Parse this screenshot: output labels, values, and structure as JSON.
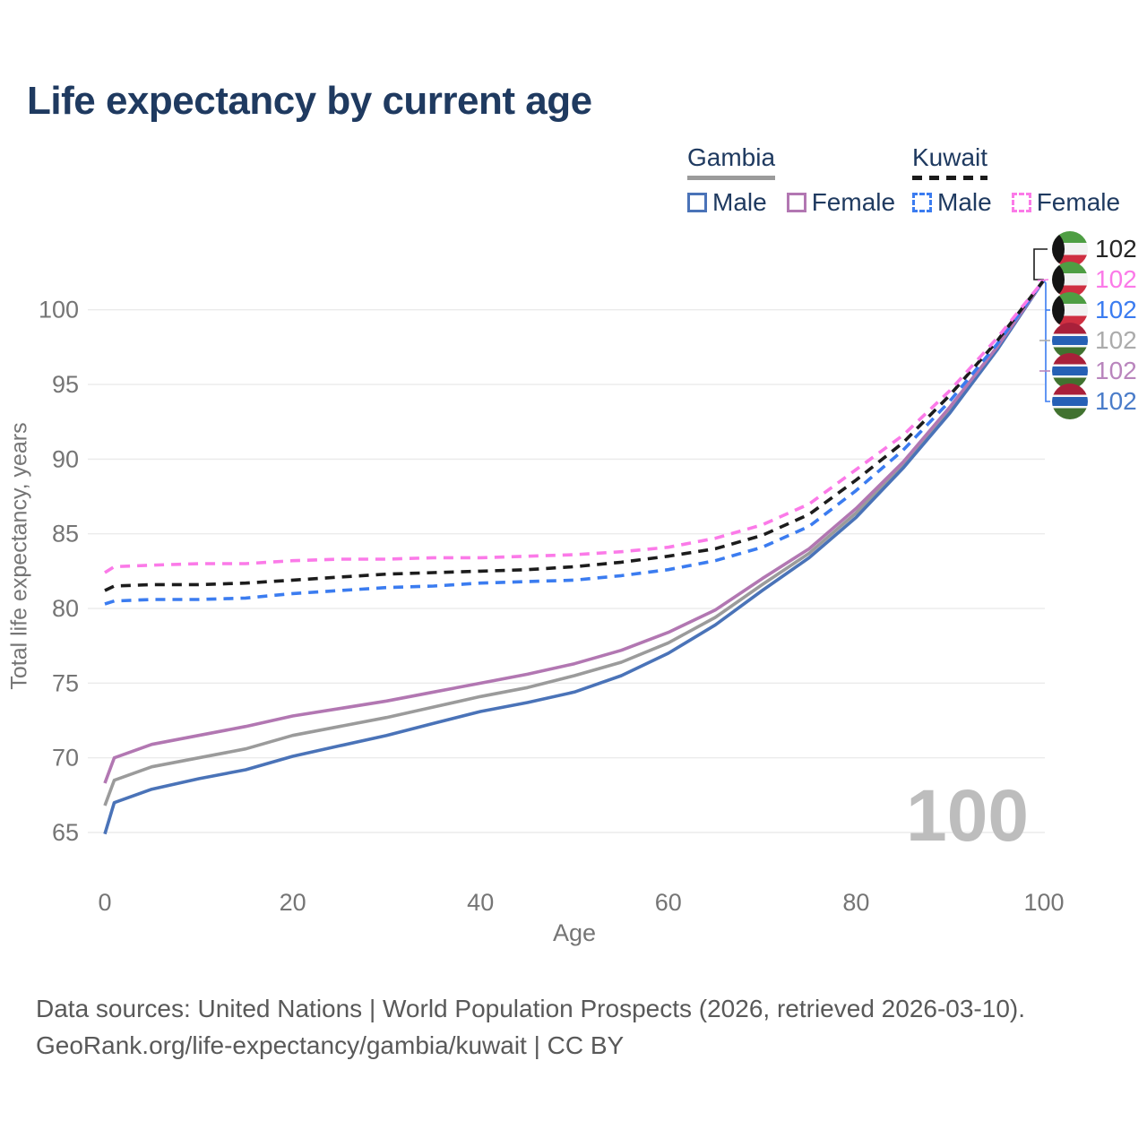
{
  "title": "Life expectancy by current age",
  "legend": {
    "groups": [
      {
        "label": "Gambia",
        "line_style": "solid",
        "underline_color": "#9b9b9b",
        "items": [
          {
            "label": "Male",
            "color": "#4a73b8",
            "dashed": false
          },
          {
            "label": "Female",
            "color": "#b277b2",
            "dashed": false
          }
        ]
      },
      {
        "label": "Kuwait",
        "line_style": "dashed",
        "underline_color": "#1b1b1b",
        "items": [
          {
            "label": "Male",
            "color": "#3b7cf0",
            "dashed": true
          },
          {
            "label": "Female",
            "color": "#fb7ae8",
            "dashed": true
          }
        ]
      }
    ]
  },
  "end_labels": [
    {
      "value": "102",
      "country": "Kuwait",
      "series": "Kuwait",
      "color": "#262626",
      "flag": "kuwait"
    },
    {
      "value": "102",
      "country": "Kuwait",
      "series": "Kuwait Female",
      "color": "#fb7ae8",
      "flag": "kuwait"
    },
    {
      "value": "102",
      "country": "Kuwait",
      "series": "Kuwait Male",
      "color": "#3b7cf0",
      "flag": "kuwait"
    },
    {
      "value": "102",
      "country": "Gambia",
      "series": "Gambia",
      "color": "#ababab",
      "flag": "gambia"
    },
    {
      "value": "102",
      "country": "Gambia",
      "series": "Gambia Female",
      "color": "#b985bd",
      "flag": "gambia"
    },
    {
      "value": "102",
      "country": "Gambia",
      "series": "Gambia Male",
      "color": "#4a7cc9",
      "flag": "gambia"
    }
  ],
  "watermark": "100",
  "chart_data": {
    "type": "line",
    "title": "Life expectancy by current age",
    "xlabel": "Age",
    "ylabel": "Total life expectancy, years",
    "x": [
      0,
      1,
      5,
      10,
      15,
      20,
      25,
      30,
      35,
      40,
      45,
      50,
      55,
      60,
      65,
      70,
      75,
      80,
      85,
      90,
      95,
      100
    ],
    "xticks": [
      0,
      20,
      40,
      60,
      80,
      100
    ],
    "yticks": [
      65,
      70,
      75,
      80,
      85,
      90,
      95,
      100
    ],
    "xlim": [
      0,
      100
    ],
    "ylim": [
      63,
      103.5
    ],
    "grid": "horizontal",
    "legend_position": "top-right",
    "series": [
      {
        "name": "Gambia",
        "color": "#9b9b9b",
        "dashed": false,
        "values": [
          66.8,
          68.5,
          69.4,
          70.0,
          70.6,
          71.5,
          72.1,
          72.7,
          73.4,
          74.1,
          74.7,
          75.5,
          76.4,
          77.7,
          79.4,
          81.6,
          83.7,
          86.4,
          89.6,
          93.3,
          97.4,
          102
        ]
      },
      {
        "name": "Gambia Male",
        "color": "#4a73b8",
        "dashed": false,
        "values": [
          64.9,
          67.0,
          67.9,
          68.6,
          69.2,
          70.1,
          70.8,
          71.5,
          72.3,
          73.1,
          73.7,
          74.4,
          75.5,
          77.0,
          78.9,
          81.2,
          83.4,
          86.1,
          89.4,
          93.1,
          97.3,
          102
        ]
      },
      {
        "name": "Gambia Female",
        "color": "#b277b2",
        "dashed": false,
        "values": [
          68.3,
          70.0,
          70.9,
          71.5,
          72.1,
          72.8,
          73.3,
          73.8,
          74.4,
          75.0,
          75.6,
          76.3,
          77.2,
          78.4,
          79.9,
          82.0,
          84.0,
          86.7,
          89.8,
          93.5,
          97.5,
          102
        ]
      },
      {
        "name": "Kuwait Male",
        "color": "#3b7cf0",
        "dashed": true,
        "values": [
          80.3,
          80.5,
          80.6,
          80.6,
          80.7,
          81.0,
          81.2,
          81.4,
          81.5,
          81.7,
          81.8,
          81.9,
          82.2,
          82.6,
          83.2,
          84.1,
          85.5,
          87.9,
          90.6,
          93.9,
          97.7,
          102
        ]
      },
      {
        "name": "Kuwait",
        "color": "#1c1c1c",
        "dashed": true,
        "values": [
          81.2,
          81.5,
          81.6,
          81.6,
          81.7,
          81.9,
          82.1,
          82.3,
          82.4,
          82.5,
          82.6,
          82.8,
          83.1,
          83.5,
          84.0,
          84.9,
          86.3,
          88.6,
          91.1,
          94.3,
          97.9,
          102
        ]
      },
      {
        "name": "Kuwait Female",
        "color": "#fb7ae8",
        "dashed": true,
        "values": [
          82.4,
          82.8,
          82.9,
          83.0,
          83.0,
          83.2,
          83.3,
          83.3,
          83.4,
          83.4,
          83.5,
          83.6,
          83.8,
          84.1,
          84.7,
          85.6,
          87.0,
          89.3,
          91.6,
          94.6,
          98.1,
          102
        ]
      }
    ]
  },
  "footer": {
    "line1": "Data sources: United Nations | World Population Prospects (2026, retrieved 2026-03-10).",
    "line2": "GeoRank.org/life-expectancy/gambia/kuwait | CC BY"
  }
}
